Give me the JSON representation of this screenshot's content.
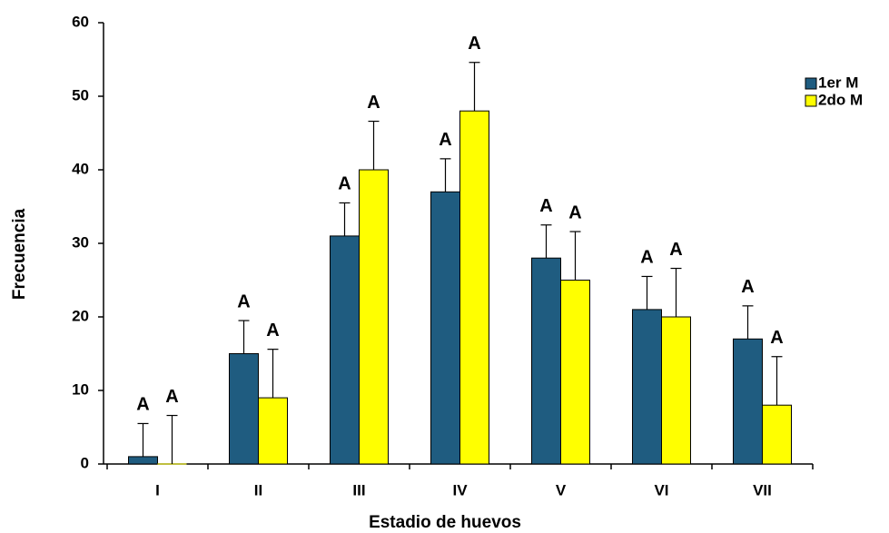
{
  "chart_data": {
    "type": "bar",
    "x_label": "Estadio de huevos",
    "y_label": "Frecuencia",
    "categories": [
      "I",
      "II",
      "III",
      "IV",
      "V",
      "VI",
      "VII"
    ],
    "series": [
      {
        "name": "1er M",
        "color": "#1f5c80",
        "values": [
          1,
          15,
          31,
          37,
          28,
          21,
          17
        ],
        "errors": [
          4.5,
          4.5,
          4.5,
          4.5,
          4.5,
          4.5,
          4.5
        ],
        "letters": [
          "A",
          "A",
          "A",
          "A",
          "A",
          "A",
          "A"
        ]
      },
      {
        "name": "2do M",
        "color": "#ffff00",
        "values": [
          0,
          9,
          40,
          48,
          25,
          20,
          8
        ],
        "errors": [
          6.6,
          6.6,
          6.6,
          6.6,
          6.6,
          6.6,
          6.6
        ],
        "letters": [
          "A",
          "A",
          "A",
          "A",
          "A",
          "A",
          "A"
        ]
      }
    ],
    "ylim": [
      0,
      60
    ],
    "yticks": [
      0,
      10,
      20,
      30,
      40,
      50,
      60
    ],
    "grid": false,
    "legend": "top-right"
  }
}
